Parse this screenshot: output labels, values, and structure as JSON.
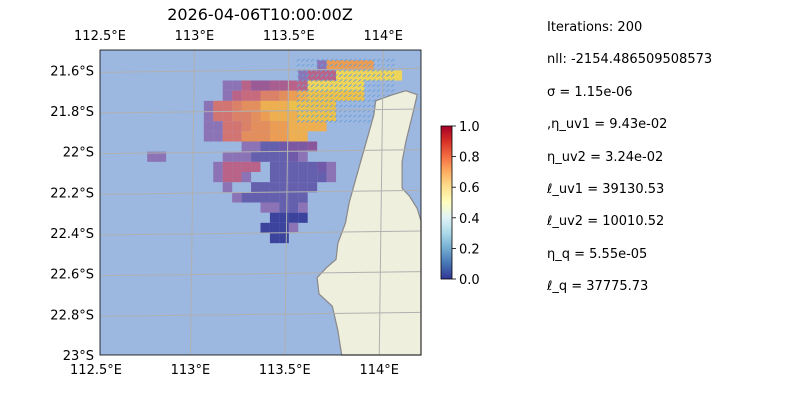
{
  "chart_data": {
    "type": "heatmap",
    "title": "2026-04-06T10:00:00Z",
    "xlim": [
      112.5,
      114.2
    ],
    "ylim": [
      -23.0,
      -21.5
    ],
    "x_tick_values": [
      112.5,
      113.0,
      113.5,
      114.0
    ],
    "x_tick_labels": [
      "112.5°E",
      "113°E",
      "113.5°E",
      "114°E"
    ],
    "y_tick_values": [
      -21.6,
      -21.8,
      -22.0,
      -22.2,
      -22.4,
      -22.6,
      -22.8,
      -23.0
    ],
    "y_tick_labels": [
      "21.6°S",
      "21.8°S",
      "22°S",
      "22.2°S",
      "22.4°S",
      "22.6°S",
      "22.8°S",
      "23°S"
    ],
    "x_ticks_top_and_bottom": true,
    "grid": true,
    "colorbar": {
      "colormap": "RdYlBu_r",
      "range": [
        0,
        1
      ],
      "tick_values": [
        0,
        0.2,
        0.4,
        0.6,
        0.8,
        1.0
      ],
      "tick_labels": [
        "0.0",
        "0.2",
        "0.4",
        "0.6",
        "0.8",
        "1.0"
      ]
    },
    "cell_size_deg": [
      0.05,
      0.05
    ],
    "grid_lon0": 112.65,
    "grid_lat0": -21.5,
    "cells": [
      "...............................",
      "....................#NNNNN.....",
      "..................#IIIiiiiiii..",
      "..........##IGGHHIIiiiiii....",
      "..........#IJJLLMNOPPPPPP.",
      "........#KKLMMOOOPPPPP",
      "........#KKLLMNOOOPPPP",
      "........##KKLMMNNOOOO",
      "........##KKMMMNNOO",
      "............##CCDEEF",
      "..##......###CCCCD#",
      ".........#IIII.CCCCCD#",
      ".........#II#..CCCCCC#",
      "..........#..CCCCCCC",
      "...........#CCCCCCC",
      "..............##CC#",
      "...............AAAA",
      "..............AAA#",
      "...............AA",
      "..............."
    ],
    "land_outline": [
      [
        113.96,
        -21.75
      ],
      [
        114.05,
        -21.72
      ],
      [
        114.12,
        -21.7
      ],
      [
        114.18,
        -21.72
      ],
      [
        114.16,
        -21.8
      ],
      [
        114.12,
        -21.95
      ],
      [
        114.1,
        -22.05
      ],
      [
        114.1,
        -22.18
      ],
      [
        114.14,
        -22.22
      ],
      [
        114.18,
        -22.28
      ],
      [
        114.2,
        -22.34
      ],
      [
        114.2,
        -23.0
      ],
      [
        113.78,
        -23.0
      ],
      [
        113.76,
        -22.88
      ],
      [
        113.73,
        -22.76
      ],
      [
        113.66,
        -22.7
      ],
      [
        113.65,
        -22.62
      ],
      [
        113.7,
        -22.57
      ],
      [
        113.75,
        -22.53
      ],
      [
        113.76,
        -22.45
      ],
      [
        113.8,
        -22.35
      ],
      [
        113.82,
        -22.25
      ],
      [
        113.85,
        -22.15
      ],
      [
        113.88,
        -22.05
      ],
      [
        113.92,
        -21.92
      ],
      [
        113.95,
        -21.82
      ]
    ],
    "quiver_region": {
      "lon_range": [
        113.55,
        114.05
      ],
      "lat_range": [
        -21.55,
        -21.85
      ],
      "arrow_color": "#6aa0d8"
    }
  },
  "legend_palette": {
    "A": "#313695",
    "B": "#4575b4",
    "C": "#5e56a8",
    "D": "#6a4fa2",
    "E": "#7a4e9b",
    "F": "#8a4d95",
    "G": "#9a508e",
    "H": "#ab5487",
    "I": "#bb5a7d",
    "J": "#cc6272",
    "K": "#d86e66",
    "L": "#e27b5a",
    "M": "#eb8a4f",
    "N": "#f39a44",
    "O": "#f7ae40",
    "P": "#f4c23c",
    "i": "#f7d84a",
    "#": "#8a6bb0"
  },
  "colors": {
    "ocean": "#9cb7e0",
    "land": "#efefde",
    "coast": "#888888",
    "grid": "#b0b0b0"
  },
  "stats": [
    "Iterations: 200",
    "nll: -2154.486509508573",
    "σ = 1.15e-06",
    ",η_uv1 = 9.43e-02",
    "η_uv2 = 3.24e-02",
    "ℓ_uv1 = 39130.53",
    "ℓ_uv2 = 10010.52",
    "η_q = 5.55e-05",
    "ℓ_q = 37775.73"
  ]
}
